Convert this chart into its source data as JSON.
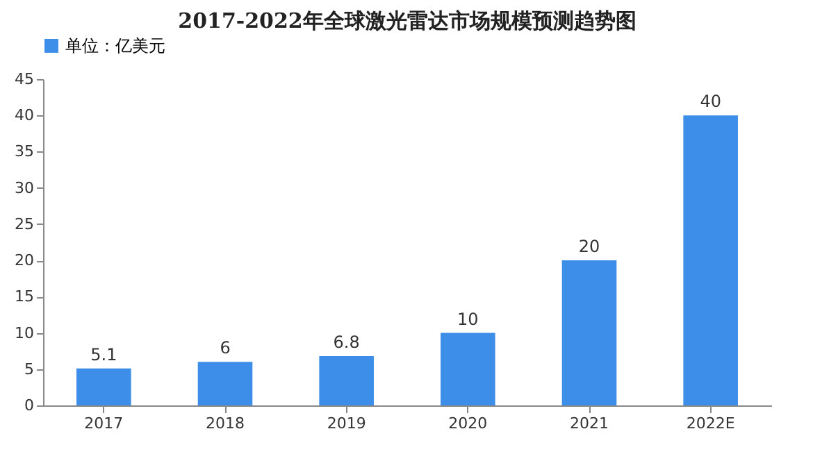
{
  "chart_data": {
    "type": "bar",
    "title": "2017-2022年全球激光雷达市场规模预测趋势图",
    "categories": [
      "2017",
      "2018",
      "2019",
      "2020",
      "2021",
      "2022E"
    ],
    "series": [
      {
        "name": "单位：亿美元",
        "color": "#3d8ee8",
        "values": [
          5.1,
          6,
          6.8,
          10,
          20,
          40
        ]
      }
    ],
    "ylim": [
      0,
      45
    ],
    "yticks": [
      0,
      5,
      10,
      15,
      20,
      25,
      30,
      35,
      40,
      45
    ],
    "grid": false,
    "legend": "top",
    "data_labels": true
  }
}
